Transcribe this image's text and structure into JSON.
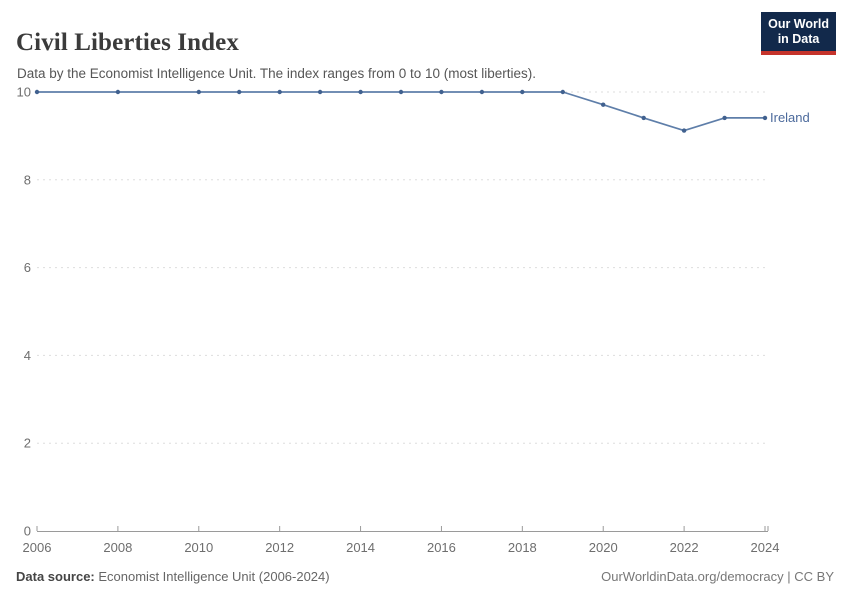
{
  "header": {
    "title": "Civil Liberties Index",
    "subtitle": "Data by the Economist Intelligence Unit. The index ranges from 0 to 10 (most liberties)."
  },
  "logo": {
    "line1": "Our World",
    "line2": "in Data",
    "bg_color": "#12294B",
    "accent_color": "#C5332B"
  },
  "chart_data": {
    "type": "line",
    "title": "Civil Liberties Index",
    "xlabel": "",
    "ylabel": "",
    "xlim": [
      2006,
      2024
    ],
    "ylim": [
      0,
      10
    ],
    "xticks": [
      2006,
      2008,
      2010,
      2012,
      2014,
      2016,
      2018,
      2020,
      2022,
      2024
    ],
    "yticks": [
      0,
      2,
      4,
      6,
      8,
      10
    ],
    "grid": "horizontal-dashed",
    "legend_position": "end-of-line-label",
    "series": [
      {
        "name": "Ireland",
        "points": [
          [
            2006,
            10
          ],
          [
            2008,
            10
          ],
          [
            2010,
            10
          ],
          [
            2011,
            10
          ],
          [
            2012,
            10
          ],
          [
            2013,
            10
          ],
          [
            2014,
            10
          ],
          [
            2015,
            10
          ],
          [
            2016,
            10
          ],
          [
            2017,
            10
          ],
          [
            2018,
            10
          ],
          [
            2019,
            10
          ],
          [
            2020,
            9.71
          ],
          [
            2021,
            9.41
          ],
          [
            2022,
            9.12
          ],
          [
            2023,
            9.41
          ],
          [
            2024,
            9.41
          ]
        ]
      }
    ],
    "colors": {
      "line": "#5E7EA9",
      "marker": "#41618F",
      "entity_label": "#4C6A9C",
      "grid": "#DDDDDD",
      "axis": "#9A9A9A",
      "tick_text": "#6E6E6E"
    }
  },
  "footer": {
    "source_label": "Data source:",
    "source_text": " Economist Intelligence Unit (2006-2024)",
    "credit": "OurWorldinData.org/democracy | CC BY"
  }
}
